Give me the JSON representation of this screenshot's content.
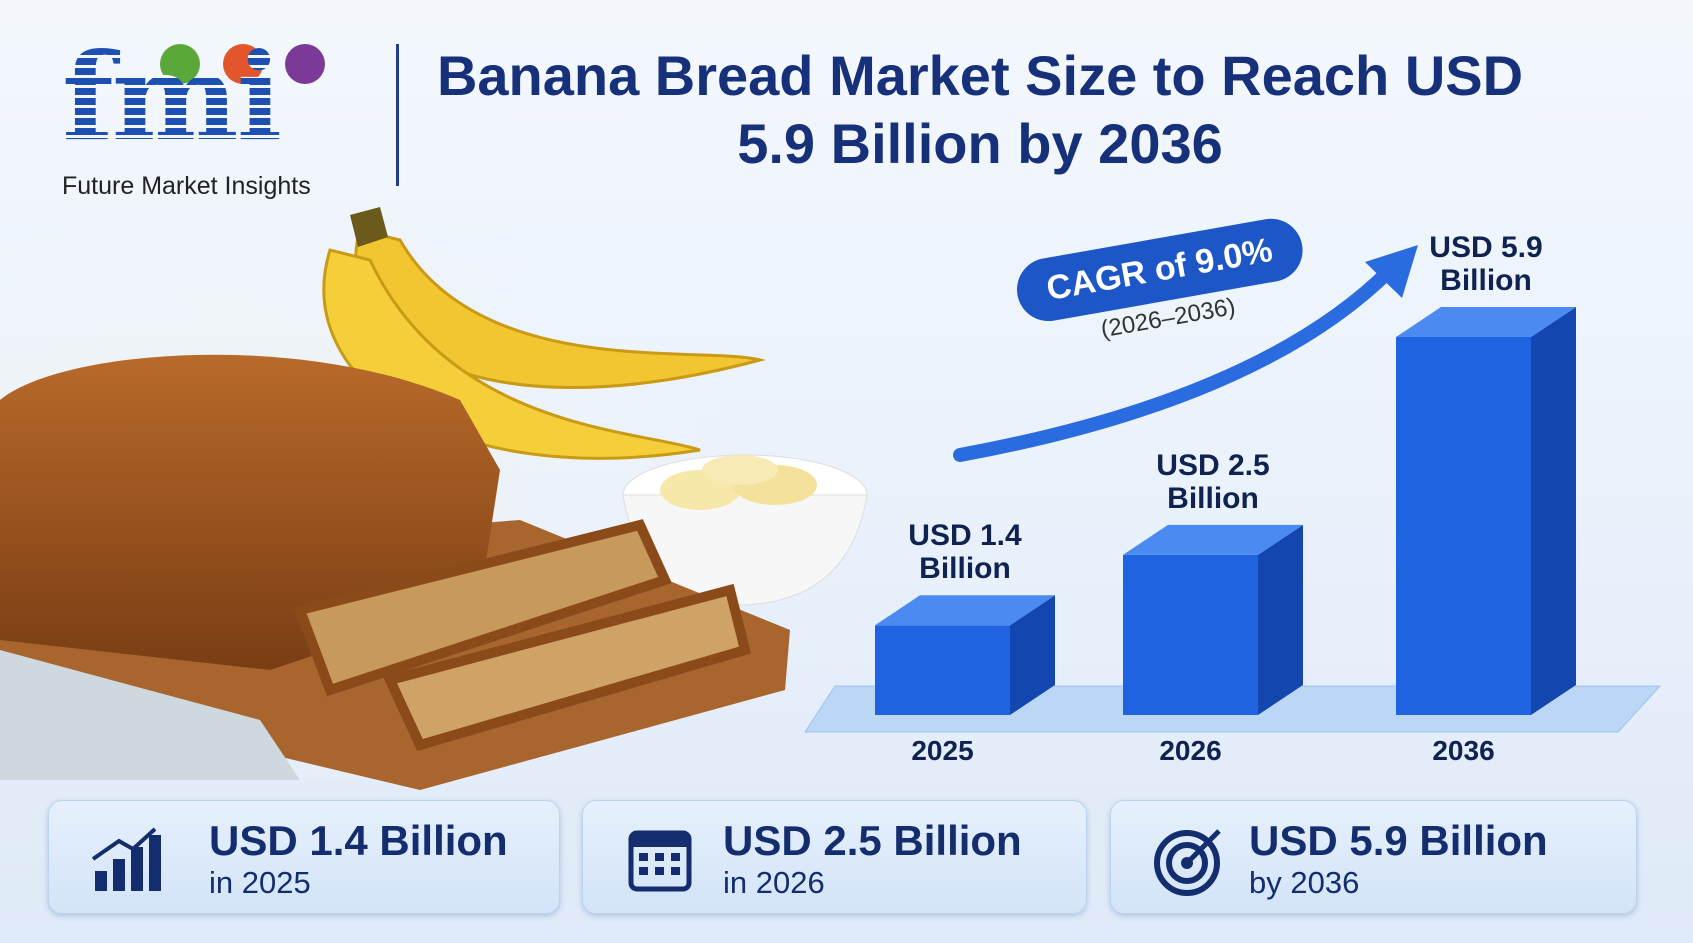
{
  "logo": {
    "mark": "fmi",
    "name": "Future Market Insights"
  },
  "title": "Banana Bread Market Size to Reach USD 5.9 Billion by 2036",
  "chart_data": {
    "type": "bar",
    "categories": [
      "2025",
      "2026",
      "2036"
    ],
    "values": [
      1.4,
      2.5,
      5.9
    ],
    "value_labels": [
      "USD 1.4 Billion",
      "USD 2.5 Billion",
      "USD 5.9 Billion"
    ],
    "color": "#1f63e0",
    "annotation": {
      "text": "CAGR of 9.0%",
      "period": "(2026–2036)"
    }
  },
  "cards": [
    {
      "value": "USD 1.4 Billion",
      "caption": "in 2025"
    },
    {
      "value": "USD 2.5 Billion",
      "caption": "in 2026"
    },
    {
      "value": "USD 5.9 Billion",
      "caption": "by 2036"
    }
  ]
}
